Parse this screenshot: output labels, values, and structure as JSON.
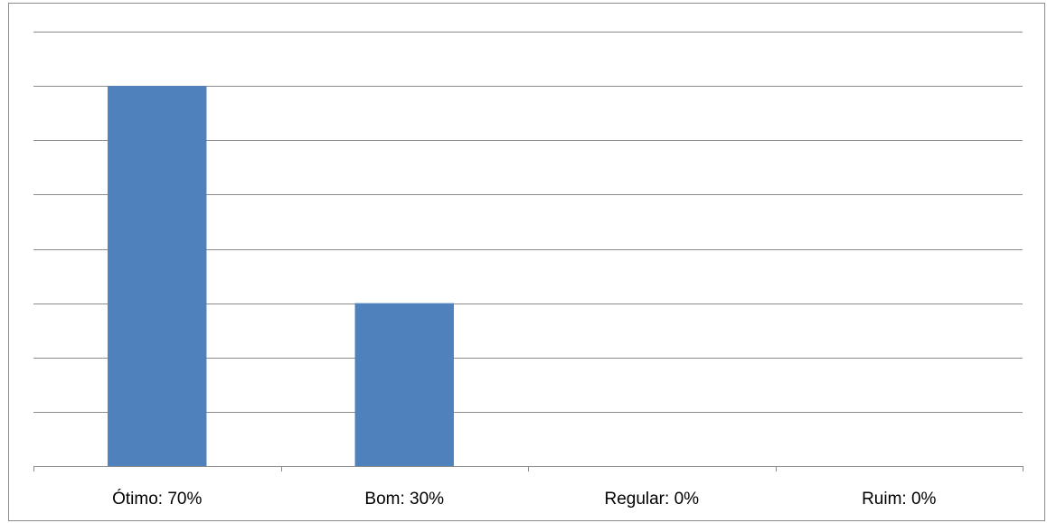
{
  "chart_data": {
    "type": "bar",
    "title": "",
    "xlabel": "",
    "ylabel": "",
    "categories": [
      "Ótimo: 70%",
      "Bom: 30%",
      "Regular: 0%",
      "Ruim: 0%"
    ],
    "values": [
      70,
      30,
      0,
      0
    ],
    "ylim": [
      0,
      80
    ],
    "ytick_step": 10,
    "grid": true,
    "legend": "none",
    "bar_color": "#4f81bd",
    "grid_color": "#8c8c8c"
  }
}
